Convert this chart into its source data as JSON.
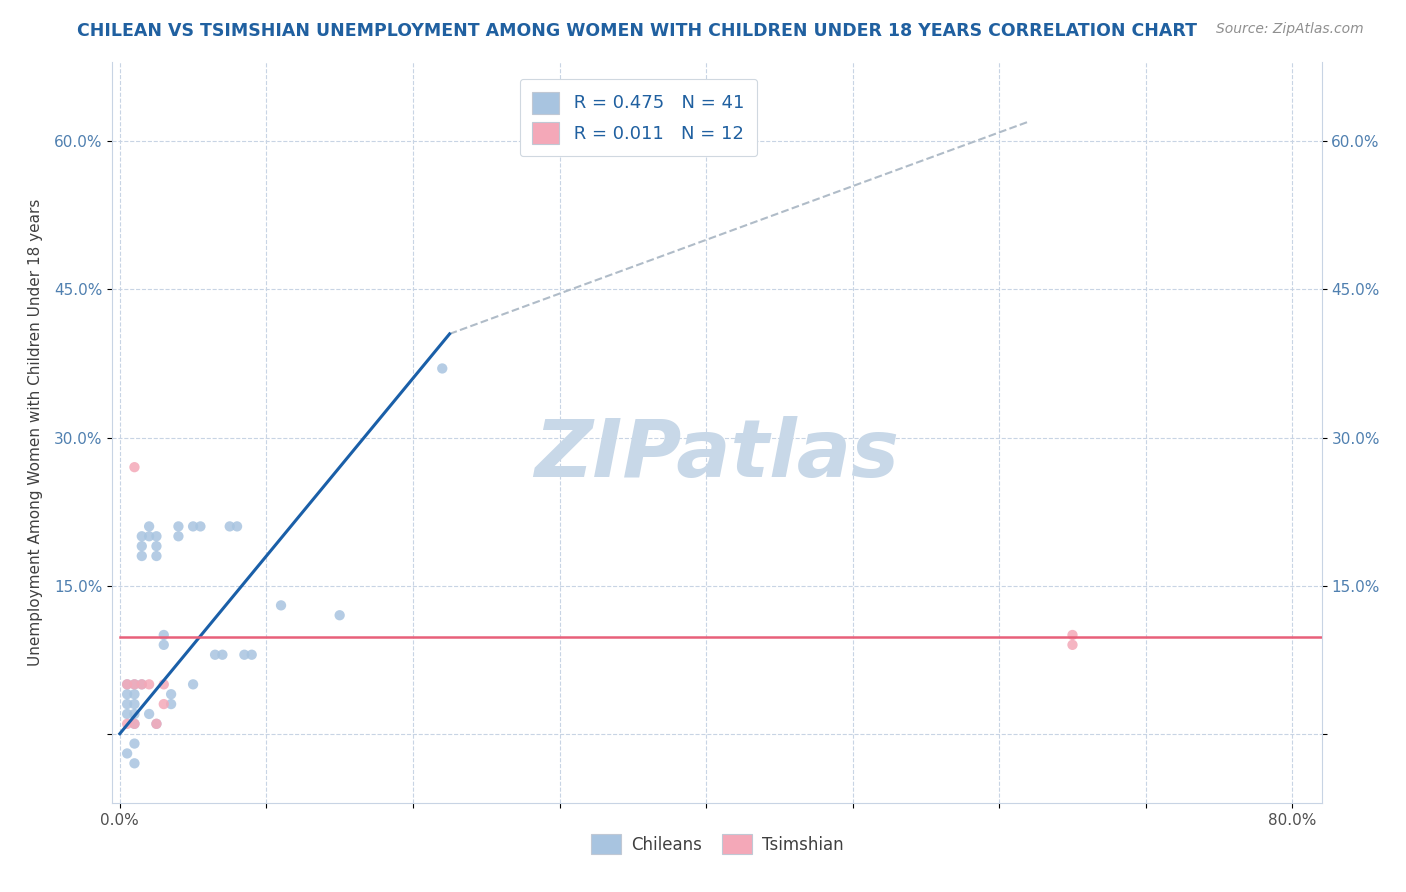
{
  "title": "CHILEAN VS TSIMSHIAN UNEMPLOYMENT AMONG WOMEN WITH CHILDREN UNDER 18 YEARS CORRELATION CHART",
  "source": "Source: ZipAtlas.com",
  "ylabel": "Unemployment Among Women with Children Under 18 years",
  "xlabel": "",
  "xlim": [
    -0.005,
    0.82
  ],
  "ylim": [
    -0.07,
    0.68
  ],
  "xticks": [
    0.0,
    0.1,
    0.2,
    0.3,
    0.4,
    0.5,
    0.6,
    0.7,
    0.8
  ],
  "xtick_labels": [
    "0.0%",
    "",
    "",
    "",
    "",
    "",
    "",
    "",
    "80.0%"
  ],
  "yticks": [
    0.0,
    0.15,
    0.3,
    0.45,
    0.6
  ],
  "ytick_labels": [
    "",
    "15.0%",
    "30.0%",
    "45.0%",
    "60.0%"
  ],
  "right_ytick_labels": [
    "",
    "15.0%",
    "30.0%",
    "45.0%",
    "60.0%"
  ],
  "chilean_color": "#a8c4e0",
  "tsimshian_color": "#f4a8b8",
  "trend_chilean_color": "#1a5fa8",
  "trend_tsimshian_color": "#e8607a",
  "watermark_color": "#c8d8e8",
  "legend_r_chilean": "R = 0.475",
  "legend_n_chilean": "N = 41",
  "legend_r_tsimshian": "R = 0.011",
  "legend_n_tsimshian": "N = 12",
  "chilean_x": [
    0.005,
    0.005,
    0.005,
    0.005,
    0.005,
    0.01,
    0.01,
    0.01,
    0.01,
    0.01,
    0.01,
    0.01,
    0.015,
    0.015,
    0.015,
    0.015,
    0.02,
    0.02,
    0.02,
    0.025,
    0.025,
    0.025,
    0.025,
    0.03,
    0.03,
    0.035,
    0.035,
    0.04,
    0.04,
    0.05,
    0.05,
    0.055,
    0.065,
    0.07,
    0.075,
    0.08,
    0.085,
    0.09,
    0.11,
    0.15,
    0.22
  ],
  "chilean_y": [
    0.05,
    0.04,
    0.03,
    0.02,
    -0.02,
    0.05,
    0.04,
    0.03,
    0.02,
    0.01,
    -0.01,
    -0.03,
    0.2,
    0.19,
    0.18,
    0.05,
    0.21,
    0.2,
    0.02,
    0.2,
    0.19,
    0.18,
    0.01,
    0.1,
    0.09,
    0.04,
    0.03,
    0.21,
    0.2,
    0.21,
    0.05,
    0.21,
    0.08,
    0.08,
    0.21,
    0.21,
    0.08,
    0.08,
    0.13,
    0.12,
    0.37
  ],
  "tsimshian_x": [
    0.005,
    0.005,
    0.01,
    0.01,
    0.01,
    0.015,
    0.02,
    0.025,
    0.03,
    0.03,
    0.65,
    0.65
  ],
  "tsimshian_y": [
    0.05,
    0.01,
    0.27,
    0.05,
    0.01,
    0.05,
    0.05,
    0.01,
    0.05,
    0.03,
    0.1,
    0.09
  ],
  "trend_chilean_x0": 0.0,
  "trend_chilean_y0": 0.0,
  "trend_chilean_x1": 0.225,
  "trend_chilean_y1": 0.405,
  "trend_dash_x0": 0.225,
  "trend_dash_y0": 0.405,
  "trend_dash_x1": 0.62,
  "trend_dash_y1": 0.62,
  "trend_tsimshian_y": 0.098,
  "background_color": "#ffffff",
  "grid_color": "#c8d4e4",
  "title_color": "#2060a0",
  "source_color": "#909090"
}
